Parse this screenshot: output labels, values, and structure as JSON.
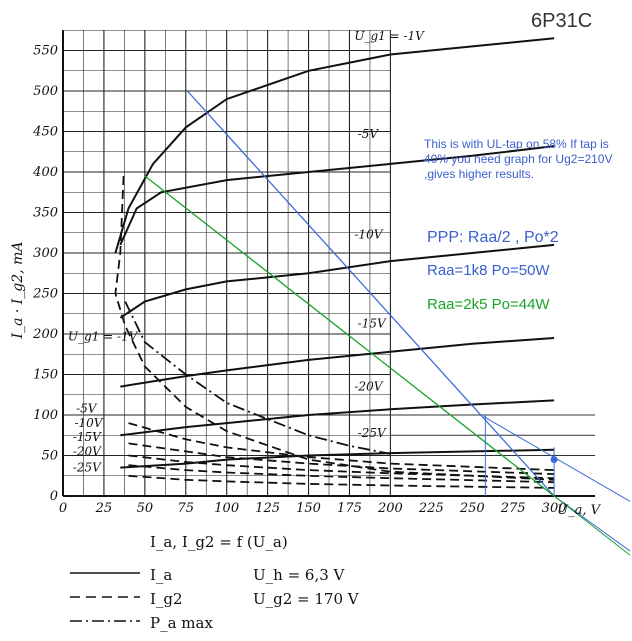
{
  "chart_data": {
    "type": "line",
    "tube": "6P31C",
    "xlabel": "U_a, V",
    "ylabel": "I_a · I_g2, mA",
    "xlim": [
      0,
      300
    ],
    "ylim": [
      0,
      575
    ],
    "x_ticks": [
      "0",
      "25",
      "50",
      "75",
      "100",
      "125",
      "150",
      "175",
      "200",
      "225",
      "250",
      "275",
      "300"
    ],
    "y_ticks": [
      "0",
      "50",
      "100",
      "150",
      "200",
      "250",
      "300",
      "350",
      "400",
      "450",
      "500",
      "550"
    ],
    "grid": true,
    "plate_curves": [
      {
        "label": "U_g1 = -1V",
        "points": [
          [
            32,
            300
          ],
          [
            40,
            355
          ],
          [
            55,
            410
          ],
          [
            75,
            455
          ],
          [
            100,
            490
          ],
          [
            150,
            525
          ],
          [
            200,
            545
          ],
          [
            250,
            555
          ],
          [
            300,
            565
          ]
        ]
      },
      {
        "label": "-5V",
        "points": [
          [
            35,
            310
          ],
          [
            45,
            355
          ],
          [
            60,
            375
          ],
          [
            100,
            390
          ],
          [
            150,
            400
          ],
          [
            200,
            410
          ],
          [
            250,
            420
          ],
          [
            300,
            432
          ]
        ]
      },
      {
        "label": "-10V",
        "points": [
          [
            35,
            220
          ],
          [
            50,
            240
          ],
          [
            75,
            255
          ],
          [
            100,
            265
          ],
          [
            150,
            275
          ],
          [
            200,
            290
          ],
          [
            250,
            300
          ],
          [
            300,
            310
          ]
        ]
      },
      {
        "label": "-15V",
        "points": [
          [
            35,
            135
          ],
          [
            75,
            148
          ],
          [
            100,
            155
          ],
          [
            150,
            168
          ],
          [
            200,
            178
          ],
          [
            250,
            188
          ],
          [
            300,
            195
          ]
        ]
      },
      {
        "label": "-20V",
        "points": [
          [
            35,
            75
          ],
          [
            75,
            85
          ],
          [
            100,
            90
          ],
          [
            150,
            100
          ],
          [
            200,
            107
          ],
          [
            250,
            113
          ],
          [
            300,
            118
          ]
        ]
      },
      {
        "label": "-25V",
        "points": [
          [
            35,
            35
          ],
          [
            75,
            40
          ],
          [
            100,
            45
          ],
          [
            150,
            50
          ],
          [
            200,
            53
          ],
          [
            250,
            55
          ],
          [
            300,
            57
          ]
        ]
      }
    ],
    "screen_curves": [
      {
        "label": "U_g1 = -1V",
        "points": [
          [
            37,
            395
          ],
          [
            35,
            300
          ],
          [
            32,
            250
          ],
          [
            38,
            210
          ],
          [
            50,
            160
          ],
          [
            75,
            110
          ],
          [
            100,
            80
          ],
          [
            150,
            45
          ],
          [
            200,
            30
          ],
          [
            300,
            20
          ]
        ]
      },
      {
        "label": "-5V",
        "points": [
          [
            40,
            90
          ],
          [
            75,
            70
          ],
          [
            100,
            60
          ],
          [
            150,
            48
          ],
          [
            200,
            40
          ],
          [
            300,
            32
          ]
        ]
      },
      {
        "label": "-10V",
        "points": [
          [
            40,
            65
          ],
          [
            75,
            55
          ],
          [
            100,
            48
          ],
          [
            150,
            40
          ],
          [
            200,
            34
          ],
          [
            300,
            27
          ]
        ]
      },
      {
        "label": "-15V",
        "points": [
          [
            40,
            50
          ],
          [
            75,
            42
          ],
          [
            100,
            38
          ],
          [
            150,
            32
          ],
          [
            200,
            28
          ],
          [
            300,
            22
          ]
        ]
      },
      {
        "label": "-20V",
        "points": [
          [
            40,
            38
          ],
          [
            75,
            32
          ],
          [
            100,
            29
          ],
          [
            150,
            25
          ],
          [
            200,
            22
          ],
          [
            300,
            17
          ]
        ]
      },
      {
        "label": "-25V",
        "points": [
          [
            40,
            25
          ],
          [
            75,
            20
          ],
          [
            100,
            18
          ],
          [
            150,
            15
          ],
          [
            200,
            13
          ],
          [
            300,
            10
          ]
        ]
      }
    ],
    "pa_max_curve": [
      [
        38,
        240
      ],
      [
        50,
        190
      ],
      [
        75,
        150
      ],
      [
        100,
        115
      ],
      [
        125,
        95
      ],
      [
        150,
        75
      ],
      [
        175,
        62
      ],
      [
        200,
        52
      ]
    ],
    "plate_curve_labels": [
      {
        "text": "U_g1 = -1V",
        "x": 178,
        "y": 563
      },
      {
        "text": "-5V",
        "x": 180,
        "y": 442
      },
      {
        "text": "-10V",
        "x": 178,
        "y": 318
      },
      {
        "text": "-15V",
        "x": 180,
        "y": 208
      },
      {
        "text": "-20V",
        "x": 178,
        "y": 130
      },
      {
        "text": "-25V",
        "x": 180,
        "y": 73
      }
    ],
    "screen_curve_labels": [
      {
        "text": "U_g1 = -1V",
        "x": 3,
        "y": 192
      },
      {
        "text": "-5V",
        "x": 8,
        "y": 103
      },
      {
        "text": "-10V",
        "x": 7,
        "y": 85
      },
      {
        "text": "-15V",
        "x": 6,
        "y": 68
      },
      {
        "text": "-20V",
        "x": 6,
        "y": 50
      },
      {
        "text": "-25V",
        "x": 6,
        "y": 30
      }
    ],
    "load_lines": [
      {
        "name": "Raa=1k8",
        "color": "#3a6bd6",
        "from": [
          76,
          500
        ],
        "to": [
          300,
          0
        ],
        "extend_to": [
          375,
          -110
        ]
      },
      {
        "name": "Raa=2k5",
        "color": "#1aa32a",
        "from": [
          50,
          395
        ],
        "to": [
          300,
          0
        ],
        "extend_to": [
          375,
          -118
        ]
      }
    ],
    "helper_lines": [
      {
        "color": "#3a6bd6",
        "points": [
          [
            258,
            0
          ],
          [
            258,
            100
          ]
        ]
      },
      {
        "color": "#3a6bd6",
        "points": [
          [
            300,
            0
          ],
          [
            300,
            60
          ]
        ]
      },
      {
        "color": "#3a6bd6",
        "points": [
          [
            257,
            98
          ],
          [
            375,
            -40
          ]
        ]
      }
    ],
    "operating_point": {
      "x": 300,
      "y": 45,
      "color": "#3a6bd6"
    },
    "reference_lines_y": [
      100,
      75,
      50
    ],
    "reference_lines_x_range": [
      200,
      325
    ]
  },
  "annotations": {
    "title": "6P31C",
    "note": "This is with UL-tap on 58% If tap is 40% you need graph  for Ug2=210V ,gives higher  results.",
    "ppp": "PPP: Raa/2 , Po*2",
    "raa1": "Raa=1k8    Po=50W",
    "raa2": "Raa=2k5    Po=44W"
  },
  "legend": {
    "caption": "I_a,  I_g2 = f (U_a)",
    "ia": "I_a",
    "ig2": "I_g2",
    "pamax": "P_a max",
    "uh": "U_h = 6,3  V",
    "ug2": "U_g2 = 170  V"
  }
}
